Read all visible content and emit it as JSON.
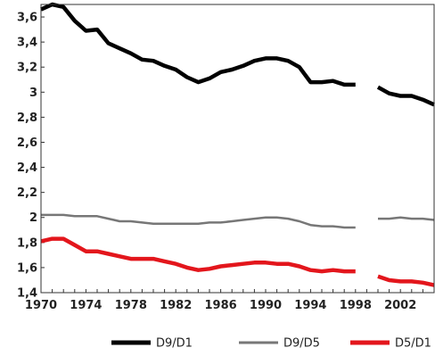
{
  "chart_data": {
    "type": "line",
    "title": "",
    "xlabel": "",
    "ylabel": "",
    "xlim": [
      1970,
      2005
    ],
    "ylim": [
      1.4,
      3.7
    ],
    "grid": false,
    "legend_position": "bottom",
    "x_ticks": [
      1970,
      1974,
      1978,
      1982,
      1986,
      1990,
      1994,
      1998,
      2002
    ],
    "x_tick_labels": [
      "1970",
      "1974",
      "1978",
      "1982",
      "1986",
      "1990",
      "1994",
      "1998",
      "2002"
    ],
    "y_ticks": [
      1.4,
      1.6,
      1.8,
      2,
      2.2,
      2.4,
      2.6,
      2.8,
      3,
      3.2,
      3.4,
      3.6
    ],
    "y_tick_labels": [
      "1,4",
      "1,6",
      "1,8",
      "2",
      "2,2",
      "2,4",
      "2,6",
      "2,8",
      "3",
      "3,2",
      "3,4",
      "3,6"
    ],
    "series": [
      {
        "name": "D9/D1",
        "color": "#000000",
        "segments": [
          {
            "x": [
              1970,
              1971,
              1972,
              1973,
              1974,
              1975,
              1976,
              1977,
              1978,
              1979,
              1980,
              1981,
              1982,
              1983,
              1984,
              1985,
              1986,
              1987,
              1988,
              1989,
              1990,
              1991,
              1992,
              1993,
              1994,
              1995,
              1996,
              1997,
              1998
            ],
            "y": [
              3.66,
              3.7,
              3.68,
              3.57,
              3.49,
              3.5,
              3.39,
              3.35,
              3.31,
              3.26,
              3.25,
              3.21,
              3.18,
              3.12,
              3.08,
              3.11,
              3.16,
              3.18,
              3.21,
              3.25,
              3.27,
              3.27,
              3.25,
              3.2,
              3.08,
              3.08,
              3.09,
              3.06,
              3.06
            ]
          },
          {
            "x": [
              2000,
              2001,
              2002,
              2003,
              2004,
              2005
            ],
            "y": [
              3.04,
              2.99,
              2.97,
              2.97,
              2.94,
              2.9
            ]
          }
        ]
      },
      {
        "name": "D9/D5",
        "color": "#777777",
        "segments": [
          {
            "x": [
              1970,
              1971,
              1972,
              1973,
              1974,
              1975,
              1976,
              1977,
              1978,
              1979,
              1980,
              1981,
              1982,
              1983,
              1984,
              1985,
              1986,
              1987,
              1988,
              1989,
              1990,
              1991,
              1992,
              1993,
              1994,
              1995,
              1996,
              1997,
              1998
            ],
            "y": [
              2.02,
              2.02,
              2.02,
              2.01,
              2.01,
              2.01,
              1.99,
              1.97,
              1.97,
              1.96,
              1.95,
              1.95,
              1.95,
              1.95,
              1.95,
              1.96,
              1.96,
              1.97,
              1.98,
              1.99,
              2.0,
              2.0,
              1.99,
              1.97,
              1.94,
              1.93,
              1.93,
              1.92,
              1.92
            ]
          },
          {
            "x": [
              2000,
              2001,
              2002,
              2003,
              2004,
              2005
            ],
            "y": [
              1.99,
              1.99,
              2.0,
              1.99,
              1.99,
              1.98
            ]
          }
        ]
      },
      {
        "name": "D5/D1",
        "color": "#e3161c",
        "segments": [
          {
            "x": [
              1970,
              1971,
              1972,
              1973,
              1974,
              1975,
              1976,
              1977,
              1978,
              1979,
              1980,
              1981,
              1982,
              1983,
              1984,
              1985,
              1986,
              1987,
              1988,
              1989,
              1990,
              1991,
              1992,
              1993,
              1994,
              1995,
              1996,
              1997,
              1998
            ],
            "y": [
              1.81,
              1.83,
              1.83,
              1.78,
              1.73,
              1.73,
              1.71,
              1.69,
              1.67,
              1.67,
              1.67,
              1.65,
              1.63,
              1.6,
              1.58,
              1.59,
              1.61,
              1.62,
              1.63,
              1.64,
              1.64,
              1.63,
              1.63,
              1.61,
              1.58,
              1.57,
              1.58,
              1.57,
              1.57
            ]
          },
          {
            "x": [
              2000,
              2001,
              2002,
              2003,
              2004,
              2005
            ],
            "y": [
              1.53,
              1.5,
              1.49,
              1.49,
              1.48,
              1.46
            ]
          }
        ]
      }
    ]
  }
}
